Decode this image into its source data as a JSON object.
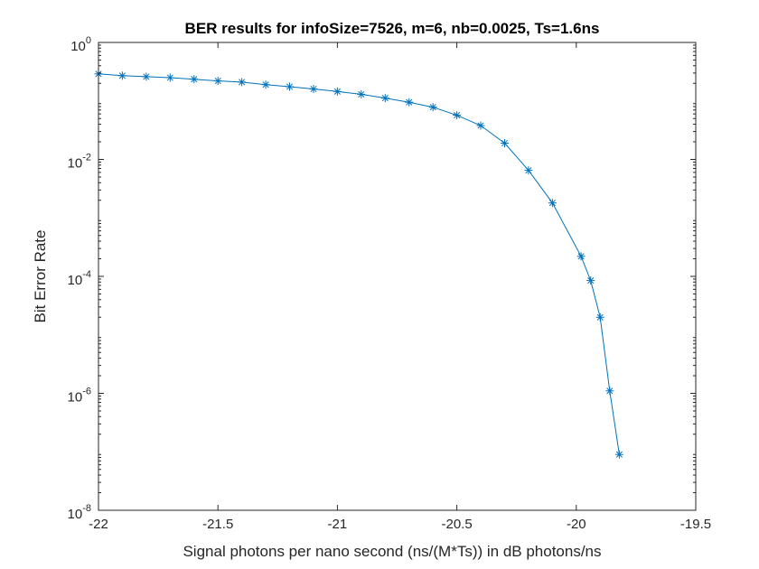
{
  "chart_data": {
    "type": "line",
    "title": "BER results for infoSize=7526, m=6, nb=0.0025, Ts=1.6ns",
    "xlabel": "Signal photons per nano second (ns/(M*Ts)) in dB photons/ns",
    "ylabel": "Bit Error Rate",
    "xlim": [
      -22,
      -19.5
    ],
    "ylim": [
      1e-08,
      1
    ],
    "yscale": "log",
    "grid": false,
    "x_ticks": [
      "-22",
      "-21.5",
      "-21",
      "-20.5",
      "-20",
      "-19.5"
    ],
    "x_tick_values": [
      -22,
      -21.5,
      -21,
      -20.5,
      -20,
      -19.5
    ],
    "y_ticks": [
      {
        "base": "10",
        "exp": "-8",
        "value": 1e-08
      },
      {
        "base": "10",
        "exp": "-6",
        "value": 1e-06
      },
      {
        "base": "10",
        "exp": "-4",
        "value": 0.0001
      },
      {
        "base": "10",
        "exp": "-2",
        "value": 0.01
      },
      {
        "base": "10",
        "exp": "0",
        "value": 1
      }
    ],
    "series": [
      {
        "color": "#0072BD",
        "marker": "asterisk",
        "x": [
          -22.0,
          -21.9,
          -21.8,
          -21.7,
          -21.6,
          -21.5,
          -21.4,
          -21.3,
          -21.2,
          -21.1,
          -21.0,
          -20.9,
          -20.8,
          -20.7,
          -20.6,
          -20.5,
          -20.4,
          -20.3,
          -20.2,
          -20.1,
          -19.98,
          -19.94,
          -19.9,
          -19.86,
          -19.82
        ],
        "y": [
          0.29,
          0.27,
          0.26,
          0.25,
          0.235,
          0.22,
          0.21,
          0.19,
          0.175,
          0.16,
          0.145,
          0.13,
          0.112,
          0.095,
          0.078,
          0.057,
          0.038,
          0.019,
          0.0065,
          0.0018,
          0.00022,
          8.5e-05,
          2e-05,
          1.1e-06,
          9e-08
        ]
      }
    ]
  }
}
